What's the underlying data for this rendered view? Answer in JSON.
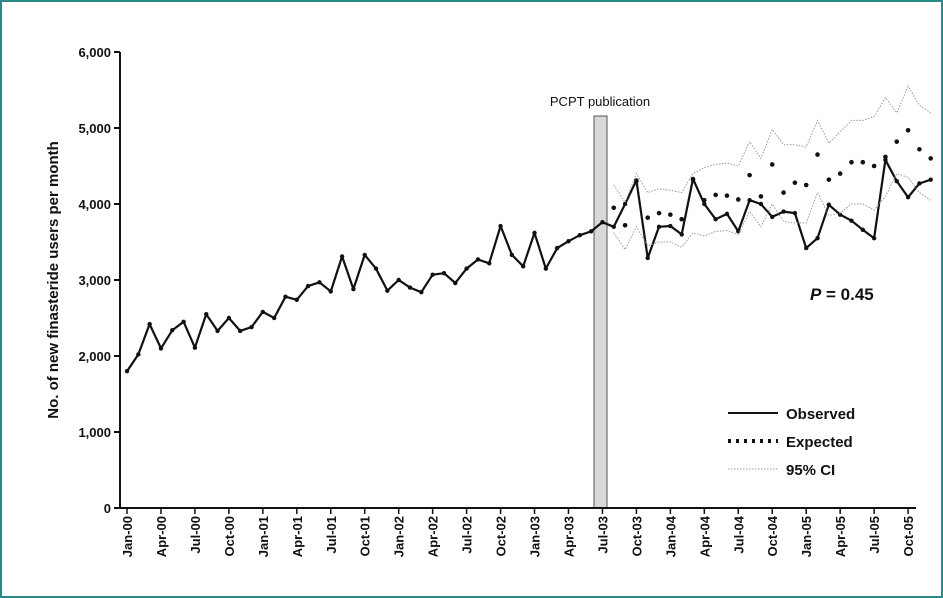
{
  "chart_data": {
    "type": "line",
    "y_axis_label": "No. of new finasteride users per month",
    "annotations": [
      "PCPT publication"
    ],
    "p_value": {
      "symbol": "P",
      "text": "= 0.45"
    },
    "categories": [
      "Jan-00",
      null,
      null,
      "Apr-00",
      null,
      null,
      "Jul-00",
      null,
      null,
      "Oct-00",
      null,
      null,
      "Jan-01",
      null,
      null,
      "Apr-01",
      null,
      null,
      "Jul-01",
      null,
      null,
      "Oct-01",
      null,
      null,
      "Jan-02",
      null,
      null,
      "Apr-02",
      null,
      null,
      "Jul-02",
      null,
      null,
      "Oct-02",
      null,
      null,
      "Jan-03",
      null,
      null,
      "Apr-03",
      null,
      null,
      "Jul-03",
      null,
      null,
      "Oct-03",
      null,
      null,
      "Jan-04",
      null,
      null,
      "Apr-04",
      null,
      null,
      "Jul-04",
      null,
      null,
      "Oct-04",
      null,
      null,
      "Jan-05",
      null,
      null,
      "Apr-05",
      null,
      null,
      "Jul-05",
      null,
      null,
      "Oct-05",
      null,
      null
    ],
    "ylim": [
      0,
      6000
    ],
    "yticks": [
      0,
      {
        "value": 1000,
        "label": "1,000"
      },
      {
        "value": 2000,
        "label": "2,000"
      },
      {
        "value": 3000,
        "label": "3,000"
      },
      {
        "value": 4000,
        "label": "4,000"
      },
      {
        "value": 5000,
        "label": "5,000"
      },
      {
        "value": 6000,
        "label": "6,000"
      }
    ],
    "legend": "lower right",
    "series": [
      {
        "name": "Observed",
        "color": "#111111",
        "style": "solid",
        "values": [
          1800,
          2020,
          2420,
          2100,
          2340,
          2450,
          2110,
          2550,
          2330,
          2500,
          2330,
          2380,
          2580,
          2500,
          2780,
          2740,
          2920,
          2970,
          2850,
          3310,
          2880,
          3330,
          3150,
          2860,
          3000,
          2900,
          2840,
          3070,
          3090,
          2960,
          3150,
          3270,
          3220,
          3710,
          3330,
          3180,
          3620,
          3150,
          3420,
          3510,
          3590,
          3640,
          3760,
          3700,
          4000,
          4310,
          3290,
          3700,
          3710,
          3600,
          4330,
          4000,
          3800,
          3870,
          3640,
          4050,
          4000,
          3830,
          3900,
          3880,
          3420,
          3550,
          3990,
          3860,
          3780,
          3660,
          3550,
          4580,
          4300,
          4090,
          4270,
          4320
        ]
      },
      {
        "name": "Expected",
        "color": "#111111",
        "style": "dotted",
        "values": [
          null,
          null,
          null,
          null,
          null,
          null,
          null,
          null,
          null,
          null,
          null,
          null,
          null,
          null,
          null,
          null,
          null,
          null,
          null,
          null,
          null,
          null,
          null,
          null,
          null,
          null,
          null,
          null,
          null,
          null,
          null,
          null,
          null,
          null,
          null,
          null,
          null,
          null,
          null,
          null,
          null,
          null,
          null,
          3950,
          3720,
          4300,
          3820,
          3880,
          3860,
          3800,
          4320,
          4050,
          4120,
          4110,
          4060,
          4380,
          4100,
          4520,
          4150,
          4280,
          4250,
          4650,
          4320,
          4400,
          4550,
          4550,
          4500,
          4620,
          4820,
          4970,
          4720,
          4600
        ]
      },
      {
        "name": "95% CI",
        "color": "#999999",
        "style": "thin",
        "values": [
          null,
          null,
          null,
          null,
          null,
          null,
          null,
          null,
          null,
          null,
          null,
          null,
          null,
          null,
          null,
          null,
          null,
          null,
          null,
          null,
          null,
          null,
          null,
          null,
          null,
          null,
          null,
          null,
          null,
          null,
          null,
          null,
          null,
          null,
          null,
          null,
          null,
          null,
          null,
          null,
          null,
          null,
          null,
          4250,
          4020,
          4400,
          4150,
          4200,
          4180,
          4150,
          4400,
          4480,
          4520,
          4540,
          4500,
          4820,
          4600,
          4980,
          4780,
          4780,
          4750,
          5100,
          4800,
          4950,
          5100,
          5100,
          5150,
          5400,
          5200,
          5550,
          5300,
          5200
        ]
      },
      {
        "color": "#999999",
        "style": "thin",
        "values": [
          null,
          null,
          null,
          null,
          null,
          null,
          null,
          null,
          null,
          null,
          null,
          null,
          null,
          null,
          null,
          null,
          null,
          null,
          null,
          null,
          null,
          null,
          null,
          null,
          null,
          null,
          null,
          null,
          null,
          null,
          null,
          null,
          null,
          null,
          null,
          null,
          null,
          null,
          null,
          null,
          null,
          null,
          null,
          3620,
          3400,
          3700,
          3450,
          3500,
          3500,
          3430,
          3620,
          3580,
          3640,
          3650,
          3600,
          3900,
          3700,
          4000,
          3770,
          3750,
          3750,
          4150,
          3850,
          3880,
          4000,
          4000,
          3920,
          4100,
          4400,
          4350,
          4150,
          4050
        ]
      }
    ]
  }
}
